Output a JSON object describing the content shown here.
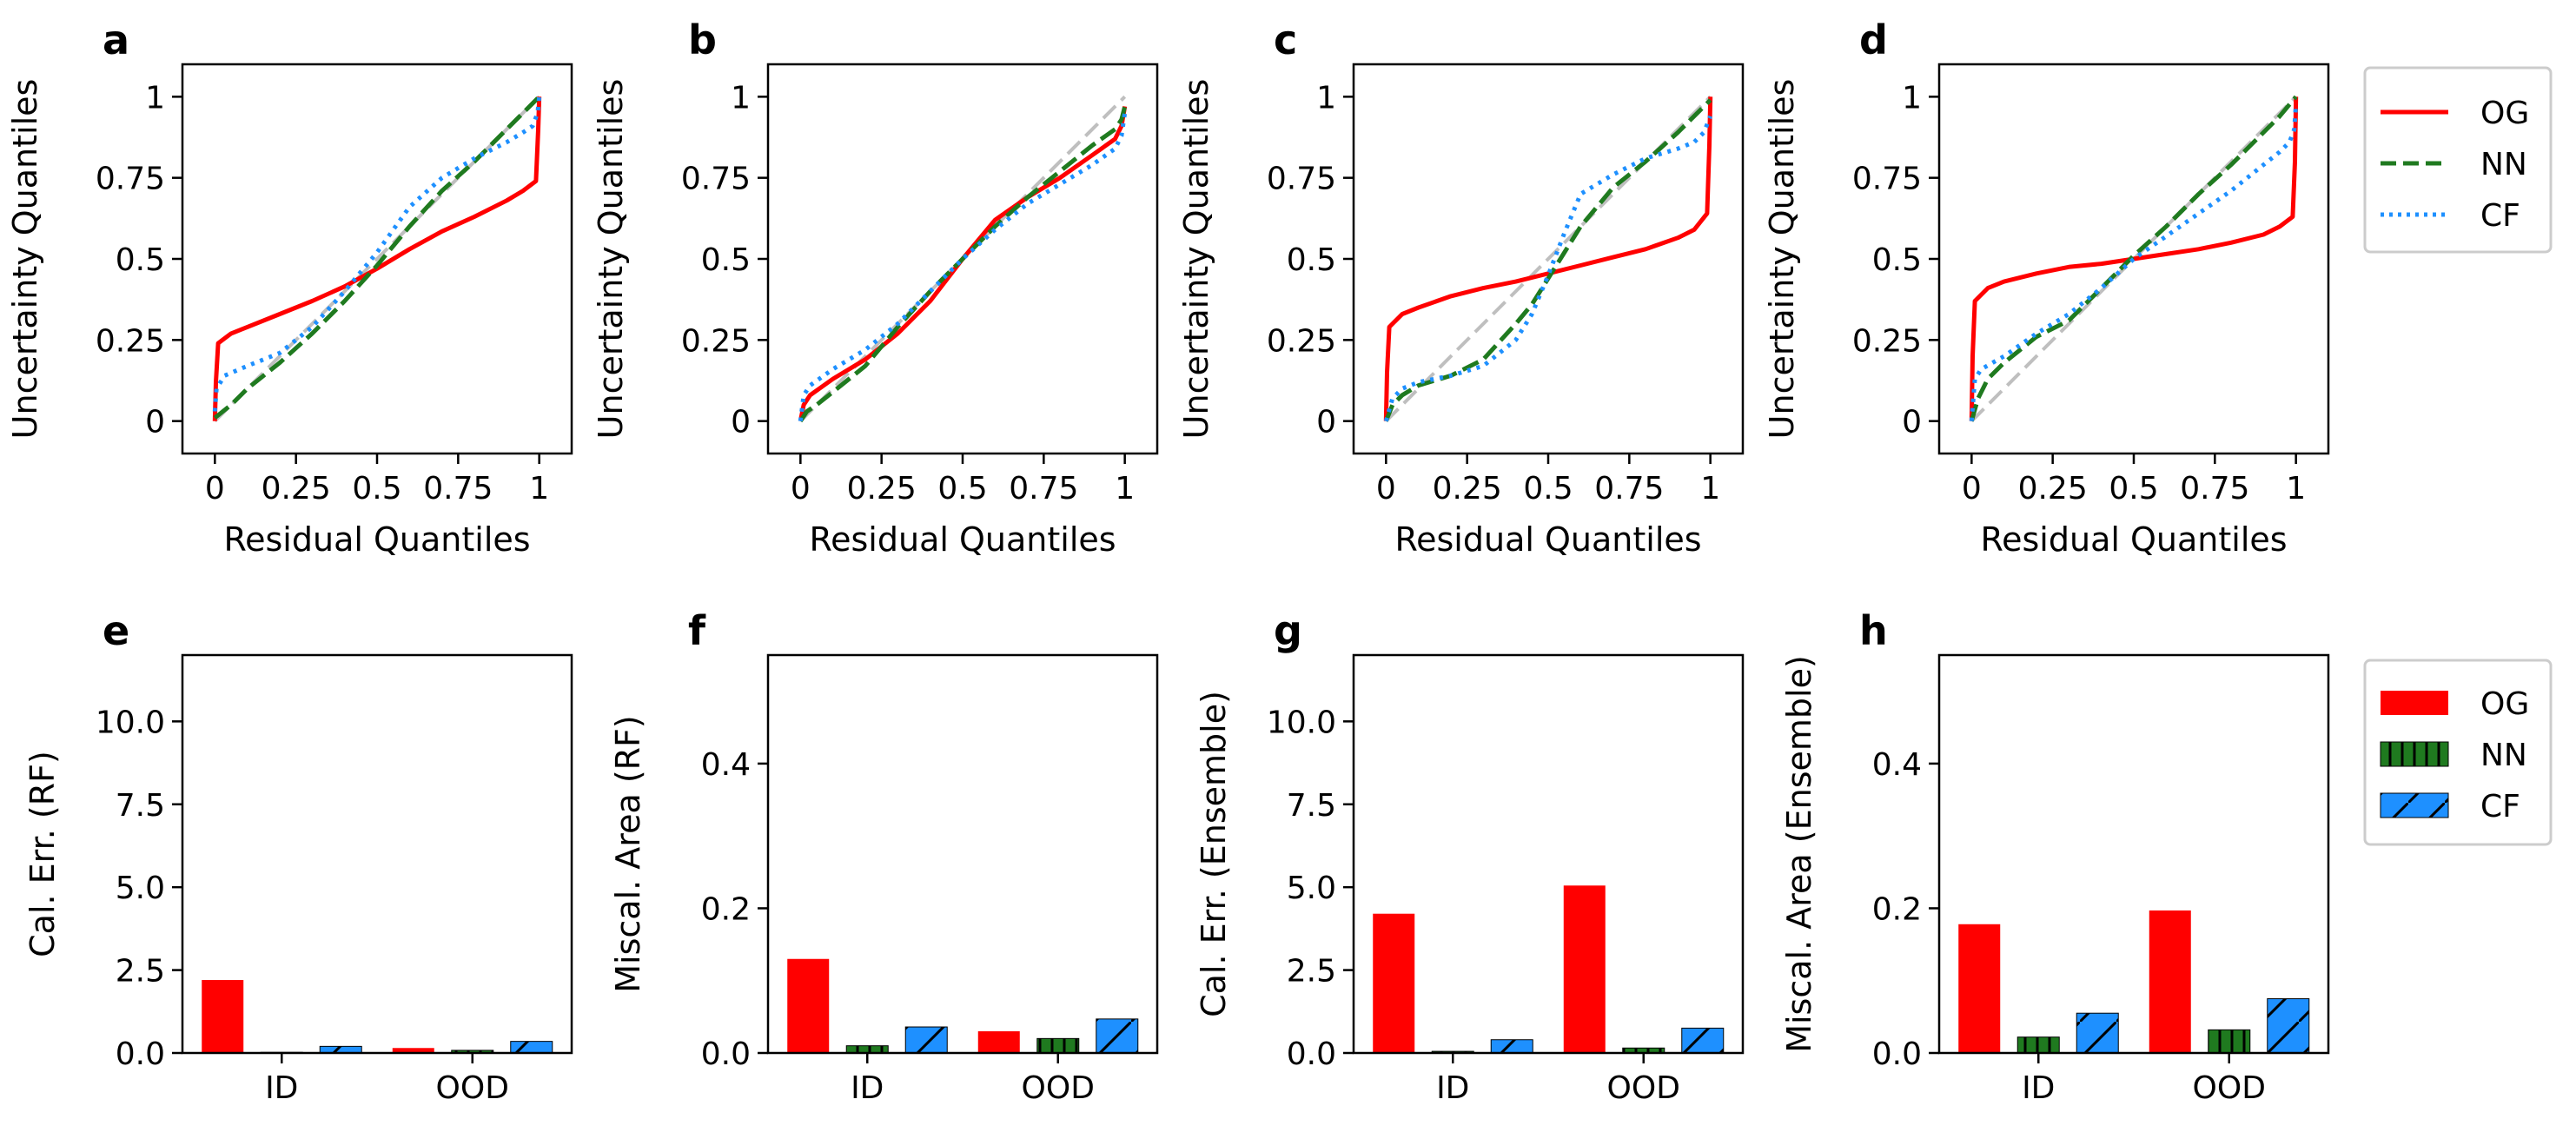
{
  "colors": {
    "OG": "#ff0000",
    "NN": "#1f7a1f",
    "CF": "#1e90ff",
    "diagonal": "#bfbfbf",
    "bar_edge": "#000000"
  },
  "legend_top": {
    "entries": [
      "OG",
      "NN",
      "CF"
    ],
    "styles": [
      "solid",
      "dashed",
      "dotted"
    ],
    "placement": "right of panel d"
  },
  "legend_bottom": {
    "entries": [
      "OG",
      "NN",
      "CF"
    ],
    "hatches": [
      "none",
      "vertical",
      "diagonal"
    ],
    "placement": "right of panel h"
  },
  "chart_data": [
    {
      "panel": "a",
      "type": "line",
      "xlabel": "Residual Quantiles",
      "ylabel": "Uncertainty Quantiles",
      "xlim": [
        -0.1,
        1.1
      ],
      "ylim": [
        -0.1,
        1.1
      ],
      "xticks": [
        "0",
        "0.25",
        "0.5",
        "0.75",
        "1"
      ],
      "yticks": [
        "0",
        "0.25",
        "0.5",
        "0.75",
        "1"
      ],
      "diagonal": true,
      "grid": false,
      "series": [
        {
          "name": "OG",
          "x": [
            0,
            0.003,
            0.01,
            0.05,
            0.1,
            0.2,
            0.3,
            0.4,
            0.5,
            0.6,
            0.7,
            0.8,
            0.9,
            0.95,
            0.99,
            0.997,
            1
          ],
          "y": [
            0,
            0.12,
            0.24,
            0.27,
            0.29,
            0.33,
            0.37,
            0.415,
            0.47,
            0.53,
            0.585,
            0.63,
            0.68,
            0.71,
            0.74,
            0.9,
            1
          ]
        },
        {
          "name": "NN",
          "x": [
            0,
            0.05,
            0.1,
            0.2,
            0.3,
            0.4,
            0.5,
            0.6,
            0.7,
            0.8,
            0.9,
            0.95,
            1
          ],
          "y": [
            0.01,
            0.05,
            0.1,
            0.18,
            0.27,
            0.37,
            0.48,
            0.6,
            0.71,
            0.8,
            0.9,
            0.95,
            1
          ]
        },
        {
          "name": "CF",
          "x": [
            0,
            0.005,
            0.03,
            0.1,
            0.2,
            0.3,
            0.4,
            0.5,
            0.6,
            0.7,
            0.8,
            0.9,
            0.95,
            0.98,
            0.995,
            1
          ],
          "y": [
            0.03,
            0.1,
            0.14,
            0.17,
            0.21,
            0.29,
            0.4,
            0.52,
            0.66,
            0.75,
            0.81,
            0.86,
            0.89,
            0.91,
            0.95,
            1
          ]
        }
      ]
    },
    {
      "panel": "b",
      "type": "line",
      "xlabel": "Residual Quantiles",
      "ylabel": "Uncertainty Quantiles",
      "xlim": [
        -0.1,
        1.1
      ],
      "ylim": [
        -0.1,
        1.1
      ],
      "xticks": [
        "0",
        "0.25",
        "0.5",
        "0.75",
        "1"
      ],
      "yticks": [
        "0",
        "0.25",
        "0.5",
        "0.75",
        "1"
      ],
      "diagonal": true,
      "grid": false,
      "series": [
        {
          "name": "OG",
          "x": [
            0,
            0.01,
            0.03,
            0.1,
            0.2,
            0.3,
            0.4,
            0.5,
            0.6,
            0.7,
            0.8,
            0.9,
            0.97,
            0.99,
            1
          ],
          "y": [
            0,
            0.05,
            0.08,
            0.13,
            0.19,
            0.27,
            0.37,
            0.5,
            0.62,
            0.69,
            0.75,
            0.82,
            0.87,
            0.91,
            0.97
          ]
        },
        {
          "name": "NN",
          "x": [
            0,
            0.02,
            0.05,
            0.1,
            0.2,
            0.3,
            0.4,
            0.5,
            0.6,
            0.7,
            0.8,
            0.9,
            0.97,
            0.99,
            1
          ],
          "y": [
            0,
            0.03,
            0.05,
            0.09,
            0.17,
            0.29,
            0.4,
            0.5,
            0.6,
            0.69,
            0.77,
            0.85,
            0.9,
            0.93,
            0.97
          ]
        },
        {
          "name": "CF",
          "x": [
            0,
            0.01,
            0.03,
            0.1,
            0.2,
            0.3,
            0.4,
            0.5,
            0.6,
            0.7,
            0.8,
            0.9,
            0.97,
            0.99,
            1
          ],
          "y": [
            0,
            0.08,
            0.11,
            0.16,
            0.22,
            0.3,
            0.4,
            0.5,
            0.59,
            0.67,
            0.73,
            0.79,
            0.84,
            0.88,
            0.95
          ]
        }
      ]
    },
    {
      "panel": "c",
      "type": "line",
      "xlabel": "Residual Quantiles",
      "ylabel": "Uncertainty Quantiles",
      "xlim": [
        -0.1,
        1.1
      ],
      "ylim": [
        -0.1,
        1.1
      ],
      "xticks": [
        "0",
        "0.25",
        "0.5",
        "0.75",
        "1"
      ],
      "yticks": [
        "0",
        "0.25",
        "0.5",
        "0.75",
        "1"
      ],
      "diagonal": true,
      "grid": false,
      "series": [
        {
          "name": "OG",
          "x": [
            0,
            0.003,
            0.01,
            0.05,
            0.1,
            0.2,
            0.3,
            0.4,
            0.5,
            0.6,
            0.7,
            0.8,
            0.9,
            0.95,
            0.99,
            0.997,
            1
          ],
          "y": [
            0,
            0.15,
            0.29,
            0.33,
            0.35,
            0.385,
            0.41,
            0.43,
            0.455,
            0.48,
            0.505,
            0.53,
            0.565,
            0.59,
            0.64,
            0.85,
            1
          ]
        },
        {
          "name": "NN",
          "x": [
            0,
            0.02,
            0.05,
            0.1,
            0.2,
            0.3,
            0.4,
            0.45,
            0.5,
            0.55,
            0.6,
            0.7,
            0.8,
            0.9,
            0.95,
            1
          ],
          "y": [
            0,
            0.05,
            0.08,
            0.11,
            0.14,
            0.19,
            0.3,
            0.36,
            0.44,
            0.52,
            0.6,
            0.72,
            0.8,
            0.89,
            0.94,
            0.99
          ]
        },
        {
          "name": "CF",
          "x": [
            0,
            0.02,
            0.05,
            0.1,
            0.2,
            0.3,
            0.4,
            0.45,
            0.5,
            0.55,
            0.6,
            0.7,
            0.8,
            0.9,
            0.95,
            0.98,
            1
          ],
          "y": [
            0,
            0.07,
            0.1,
            0.12,
            0.14,
            0.17,
            0.25,
            0.33,
            0.45,
            0.58,
            0.7,
            0.76,
            0.81,
            0.84,
            0.86,
            0.89,
            0.94
          ]
        }
      ]
    },
    {
      "panel": "d",
      "type": "line",
      "xlabel": "Residual Quantiles",
      "ylabel": "Uncertainty Quantiles",
      "xlim": [
        -0.1,
        1.1
      ],
      "ylim": [
        -0.1,
        1.1
      ],
      "xticks": [
        "0",
        "0.25",
        "0.5",
        "0.75",
        "1"
      ],
      "yticks": [
        "0",
        "0.25",
        "0.5",
        "0.75",
        "1"
      ],
      "diagonal": true,
      "grid": false,
      "series": [
        {
          "name": "OG",
          "x": [
            0,
            0.003,
            0.01,
            0.05,
            0.1,
            0.2,
            0.3,
            0.4,
            0.5,
            0.6,
            0.7,
            0.8,
            0.9,
            0.95,
            0.99,
            0.997,
            1
          ],
          "y": [
            0,
            0.2,
            0.37,
            0.41,
            0.43,
            0.455,
            0.475,
            0.485,
            0.5,
            0.515,
            0.53,
            0.55,
            0.575,
            0.6,
            0.63,
            0.8,
            1
          ]
        },
        {
          "name": "NN",
          "x": [
            0,
            0.02,
            0.05,
            0.1,
            0.2,
            0.3,
            0.4,
            0.5,
            0.6,
            0.7,
            0.8,
            0.9,
            0.95,
            1
          ],
          "y": [
            0,
            0.07,
            0.13,
            0.18,
            0.26,
            0.31,
            0.41,
            0.51,
            0.6,
            0.7,
            0.79,
            0.89,
            0.94,
            1
          ]
        },
        {
          "name": "CF",
          "x": [
            0,
            0.01,
            0.03,
            0.1,
            0.2,
            0.3,
            0.4,
            0.5,
            0.6,
            0.7,
            0.8,
            0.9,
            0.95,
            0.98,
            0.995,
            1
          ],
          "y": [
            0,
            0.13,
            0.16,
            0.2,
            0.27,
            0.33,
            0.41,
            0.5,
            0.57,
            0.64,
            0.71,
            0.79,
            0.83,
            0.86,
            0.9,
            0.98
          ]
        }
      ]
    },
    {
      "panel": "e",
      "type": "bar",
      "ylabel": "Cal. Err. (RF)",
      "categories": [
        "ID",
        "OOD"
      ],
      "ylim": [
        0,
        12
      ],
      "yticks": [
        "0.0",
        "2.5",
        "5.0",
        "7.5",
        "10.0"
      ],
      "series": [
        {
          "name": "OG",
          "values": [
            2.2,
            0.15
          ]
        },
        {
          "name": "NN",
          "values": [
            0.02,
            0.08
          ]
        },
        {
          "name": "CF",
          "values": [
            0.2,
            0.35
          ]
        }
      ]
    },
    {
      "panel": "f",
      "type": "bar",
      "ylabel": "Miscal. Area (RF)",
      "categories": [
        "ID",
        "OOD"
      ],
      "ylim": [
        0,
        0.55
      ],
      "yticks": [
        "0.0",
        "0.2",
        "0.4"
      ],
      "series": [
        {
          "name": "OG",
          "values": [
            0.13,
            0.03
          ]
        },
        {
          "name": "NN",
          "values": [
            0.01,
            0.02
          ]
        },
        {
          "name": "CF",
          "values": [
            0.036,
            0.047
          ]
        }
      ]
    },
    {
      "panel": "g",
      "type": "bar",
      "ylabel": "Cal. Err. (Ensemble)",
      "categories": [
        "ID",
        "OOD"
      ],
      "ylim": [
        0,
        12
      ],
      "yticks": [
        "0.0",
        "2.5",
        "5.0",
        "7.5",
        "10.0"
      ],
      "series": [
        {
          "name": "OG",
          "values": [
            4.2,
            5.05
          ]
        },
        {
          "name": "NN",
          "values": [
            0.05,
            0.15
          ]
        },
        {
          "name": "CF",
          "values": [
            0.4,
            0.75
          ]
        }
      ]
    },
    {
      "panel": "h",
      "type": "bar",
      "ylabel": "Miscal. Area (Ensemble)",
      "categories": [
        "ID",
        "OOD"
      ],
      "ylim": [
        0,
        0.55
      ],
      "yticks": [
        "0.0",
        "0.2",
        "0.4"
      ],
      "series": [
        {
          "name": "OG",
          "values": [
            0.178,
            0.197
          ]
        },
        {
          "name": "NN",
          "values": [
            0.022,
            0.032
          ]
        },
        {
          "name": "CF",
          "values": [
            0.055,
            0.075
          ]
        }
      ]
    }
  ]
}
